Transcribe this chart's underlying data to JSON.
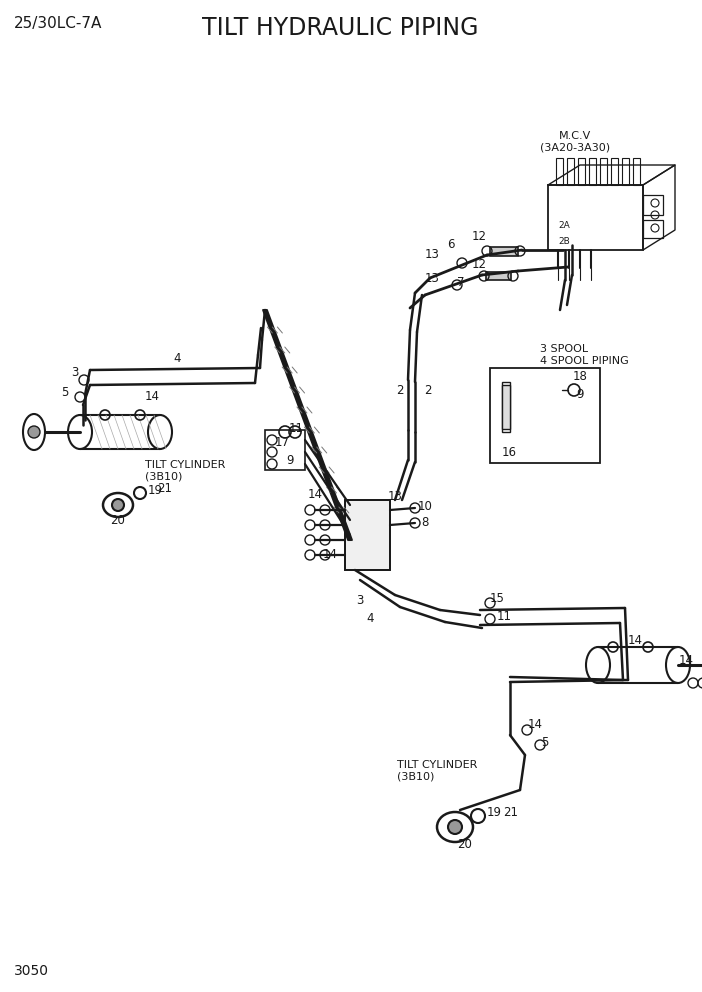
{
  "title": "TILT HYDRAULIC PIPING",
  "model": "25/30LC-7A",
  "page": "3050",
  "bg_color": "#ffffff",
  "line_color": "#1a1a1a",
  "mcv_label": "M.C.V\n(3A20-3A30)",
  "spool_label": "3 SPOOL\n4 SPOOL PIPING",
  "tilt_cyl_label_upper": "TILT CYLINDER\n(3B10)",
  "tilt_cyl_label_lower": "TILT CYLINDER\n(3B10)"
}
